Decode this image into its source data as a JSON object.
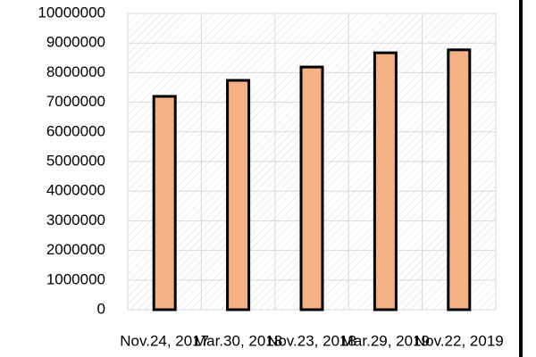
{
  "chart_data": {
    "type": "bar",
    "categories": [
      "Nov.24, 2017",
      "Mar.30, 2018",
      "Nov.23, 2018",
      "Mar.29, 2019",
      "Nov.22, 2019"
    ],
    "values": [
      7200000,
      7740000,
      8190000,
      8670000,
      8770000
    ],
    "color": "#f4b183",
    "ylim": [
      0,
      10000000
    ],
    "yticks": [
      0,
      1000000,
      2000000,
      3000000,
      4000000,
      5000000,
      6000000,
      7000000,
      8000000,
      9000000,
      10000000
    ],
    "grid": true
  }
}
